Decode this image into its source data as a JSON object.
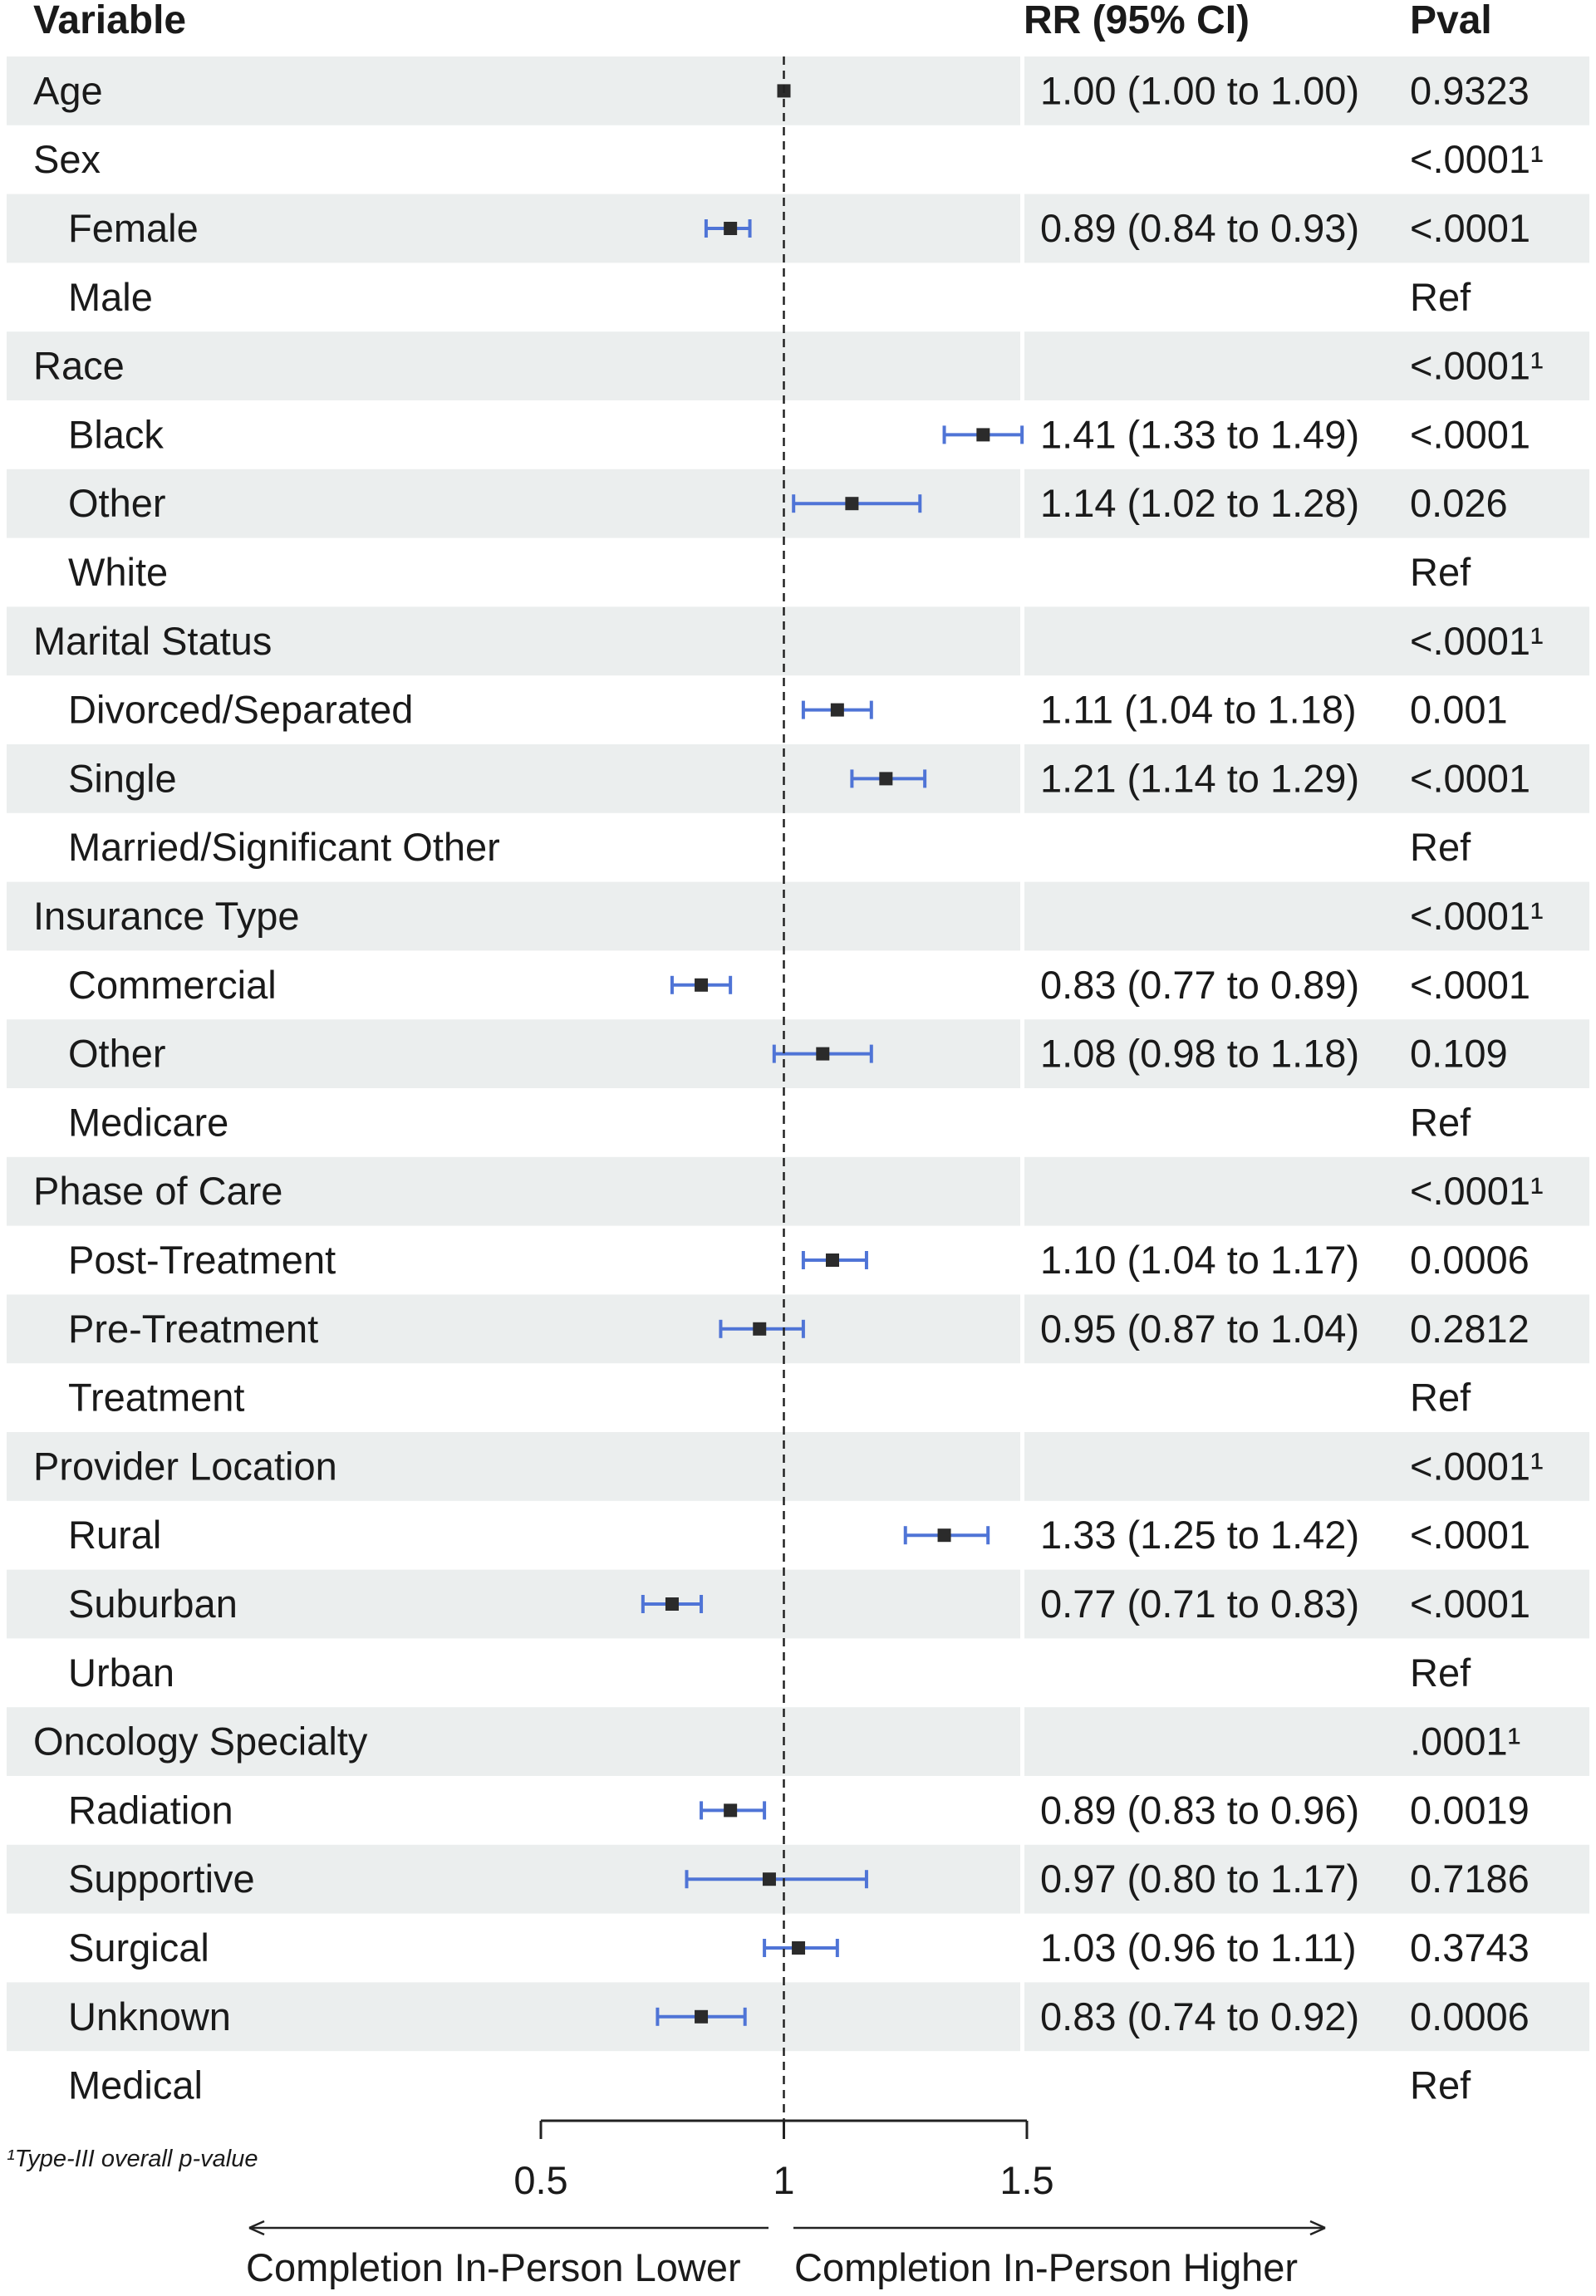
{
  "chart_data": {
    "type": "forest",
    "columns": {
      "variable": "Variable",
      "estimate": "RR (95% CI)",
      "pvalue": "Pval"
    },
    "rows": [
      {
        "label": "Age",
        "indent": false,
        "rr": 1.0,
        "lo": 1.0,
        "hi": 1.0,
        "ci_text": "1.00 (1.00 to 1.00)",
        "pval": "0.9323"
      },
      {
        "label": "Sex",
        "indent": false,
        "ci_text": "",
        "pval": "<.0001¹"
      },
      {
        "label": "Female",
        "indent": true,
        "rr": 0.89,
        "lo": 0.84,
        "hi": 0.93,
        "ci_text": "0.89 (0.84 to 0.93)",
        "pval": "<.0001"
      },
      {
        "label": "Male",
        "indent": true,
        "ci_text": "",
        "pval": "Ref"
      },
      {
        "label": "Race",
        "indent": false,
        "ci_text": "",
        "pval": "<.0001¹"
      },
      {
        "label": "Black",
        "indent": true,
        "rr": 1.41,
        "lo": 1.33,
        "hi": 1.49,
        "ci_text": "1.41 (1.33 to 1.49)",
        "pval": "<.0001"
      },
      {
        "label": "Other",
        "indent": true,
        "rr": 1.14,
        "lo": 1.02,
        "hi": 1.28,
        "ci_text": "1.14 (1.02 to 1.28)",
        "pval": "0.026"
      },
      {
        "label": "White",
        "indent": true,
        "ci_text": "",
        "pval": "Ref"
      },
      {
        "label": "Marital Status",
        "indent": false,
        "ci_text": "",
        "pval": "<.0001¹"
      },
      {
        "label": "Divorced/Separated",
        "indent": true,
        "rr": 1.11,
        "lo": 1.04,
        "hi": 1.18,
        "ci_text": "1.11 (1.04 to 1.18)",
        "pval": "0.001"
      },
      {
        "label": "Single",
        "indent": true,
        "rr": 1.21,
        "lo": 1.14,
        "hi": 1.29,
        "ci_text": "1.21 (1.14 to 1.29)",
        "pval": "<.0001"
      },
      {
        "label": "Married/Significant Other",
        "indent": true,
        "ci_text": "",
        "pval": "Ref"
      },
      {
        "label": "Insurance Type",
        "indent": false,
        "ci_text": "",
        "pval": "<.0001¹"
      },
      {
        "label": "Commercial",
        "indent": true,
        "rr": 0.83,
        "lo": 0.77,
        "hi": 0.89,
        "ci_text": "0.83 (0.77 to 0.89)",
        "pval": "<.0001"
      },
      {
        "label": "Other",
        "indent": true,
        "rr": 1.08,
        "lo": 0.98,
        "hi": 1.18,
        "ci_text": "1.08 (0.98 to 1.18)",
        "pval": "0.109"
      },
      {
        "label": "Medicare",
        "indent": true,
        "ci_text": "",
        "pval": "Ref"
      },
      {
        "label": "Phase of Care",
        "indent": false,
        "ci_text": "",
        "pval": "<.0001¹"
      },
      {
        "label": "Post-Treatment",
        "indent": true,
        "rr": 1.1,
        "lo": 1.04,
        "hi": 1.17,
        "ci_text": "1.10 (1.04 to 1.17)",
        "pval": "0.0006"
      },
      {
        "label": "Pre-Treatment",
        "indent": true,
        "rr": 0.95,
        "lo": 0.87,
        "hi": 1.04,
        "ci_text": "0.95 (0.87 to 1.04)",
        "pval": "0.2812"
      },
      {
        "label": "Treatment",
        "indent": true,
        "ci_text": "",
        "pval": "Ref"
      },
      {
        "label": "Provider Location",
        "indent": false,
        "ci_text": "",
        "pval": "<.0001¹"
      },
      {
        "label": "Rural",
        "indent": true,
        "rr": 1.33,
        "lo": 1.25,
        "hi": 1.42,
        "ci_text": "1.33 (1.25 to 1.42)",
        "pval": "<.0001"
      },
      {
        "label": "Suburban",
        "indent": true,
        "rr": 0.77,
        "lo": 0.71,
        "hi": 0.83,
        "ci_text": "0.77 (0.71 to 0.83)",
        "pval": "<.0001"
      },
      {
        "label": "Urban",
        "indent": true,
        "ci_text": "",
        "pval": "Ref"
      },
      {
        "label": "Oncology Specialty",
        "indent": false,
        "ci_text": "",
        "pval": ".0001¹"
      },
      {
        "label": "Radiation",
        "indent": true,
        "rr": 0.89,
        "lo": 0.83,
        "hi": 0.96,
        "ci_text": "0.89 (0.83 to 0.96)",
        "pval": "0.0019"
      },
      {
        "label": "Supportive",
        "indent": true,
        "rr": 0.97,
        "lo": 0.8,
        "hi": 1.17,
        "ci_text": "0.97 (0.80 to 1.17)",
        "pval": "0.7186"
      },
      {
        "label": "Surgical",
        "indent": true,
        "rr": 1.03,
        "lo": 0.96,
        "hi": 1.11,
        "ci_text": "1.03 (0.96 to 1.11)",
        "pval": "0.3743"
      },
      {
        "label": "Unknown",
        "indent": true,
        "rr": 0.83,
        "lo": 0.74,
        "hi": 0.92,
        "ci_text": "0.83 (0.74 to 0.92)",
        "pval": "0.0006"
      },
      {
        "label": "Medical",
        "indent": true,
        "ci_text": "",
        "pval": "Ref"
      }
    ],
    "x_axis": {
      "ticks": [
        0.5,
        1,
        1.5
      ],
      "tick_labels": [
        "0.5",
        "1",
        "1.5"
      ],
      "range": [
        0.5,
        1.5
      ],
      "reference": 1
    },
    "direction_labels": {
      "left": "Completion In-Person Lower",
      "right": "Completion In-Person Higher"
    },
    "footnote": "¹Type-III overall p-value",
    "colors": {
      "ci": "#4f74d6",
      "point": "#2b2b2b",
      "stripe": "#ebeeee",
      "text": "#1a1a1a"
    }
  }
}
